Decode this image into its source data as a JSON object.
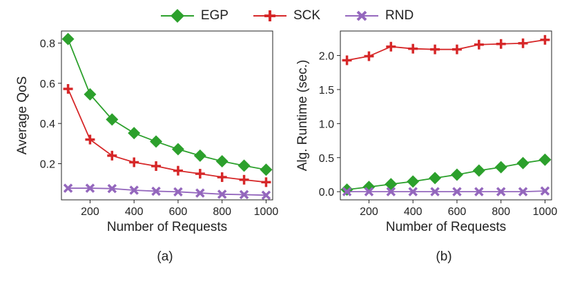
{
  "legend": {
    "items": [
      {
        "name": "EGP",
        "color": "#2ca02c",
        "marker": "diamond"
      },
      {
        "name": "SCK",
        "color": "#d62728",
        "marker": "plus"
      },
      {
        "name": "RND",
        "color": "#9467bd",
        "marker": "x"
      }
    ]
  },
  "chart_data": [
    {
      "type": "line",
      "caption": "(a)",
      "xlabel": "Number of Requests",
      "ylabel": "Average QoS",
      "x": [
        100,
        200,
        300,
        400,
        500,
        600,
        700,
        800,
        900,
        1000
      ],
      "xticks": [
        200,
        400,
        600,
        800,
        1000
      ],
      "xlim": [
        70,
        1030
      ],
      "yticks": [
        0.2,
        0.4,
        0.6,
        0.8
      ],
      "ylim": [
        0.02,
        0.86
      ],
      "grid": false,
      "series": [
        {
          "name": "EGP",
          "values": [
            0.82,
            0.545,
            0.42,
            0.352,
            0.31,
            0.272,
            0.24,
            0.212,
            0.19,
            0.17
          ]
        },
        {
          "name": "SCK",
          "values": [
            0.572,
            0.32,
            0.24,
            0.207,
            0.188,
            0.165,
            0.15,
            0.133,
            0.12,
            0.108
          ]
        },
        {
          "name": "RND",
          "values": [
            0.078,
            0.078,
            0.076,
            0.068,
            0.063,
            0.06,
            0.054,
            0.048,
            0.046,
            0.043
          ]
        }
      ]
    },
    {
      "type": "line",
      "caption": "(b)",
      "xlabel": "Number of Requests",
      "ylabel": "Alg. Runtime (sec.)",
      "x": [
        100,
        200,
        300,
        400,
        500,
        600,
        700,
        800,
        900,
        1000
      ],
      "xticks": [
        200,
        400,
        600,
        800,
        1000
      ],
      "xlim": [
        70,
        1030
      ],
      "yticks": [
        0.0,
        0.5,
        1.0,
        1.5,
        2.0
      ],
      "ytick_labels": [
        "0.0",
        "0.5",
        "1.0",
        "1.5",
        "2.0"
      ],
      "ylim": [
        -0.12,
        2.36
      ],
      "grid": false,
      "series": [
        {
          "name": "EGP",
          "values": [
            0.03,
            0.07,
            0.11,
            0.15,
            0.2,
            0.25,
            0.31,
            0.36,
            0.42,
            0.47
          ]
        },
        {
          "name": "SCK",
          "values": [
            1.93,
            1.99,
            2.13,
            2.1,
            2.09,
            2.09,
            2.16,
            2.17,
            2.18,
            2.23
          ]
        },
        {
          "name": "RND",
          "values": [
            0.0,
            0.0,
            0.0,
            0.0,
            0.0,
            0.0,
            0.0,
            0.0,
            0.0,
            0.01
          ]
        }
      ]
    }
  ]
}
